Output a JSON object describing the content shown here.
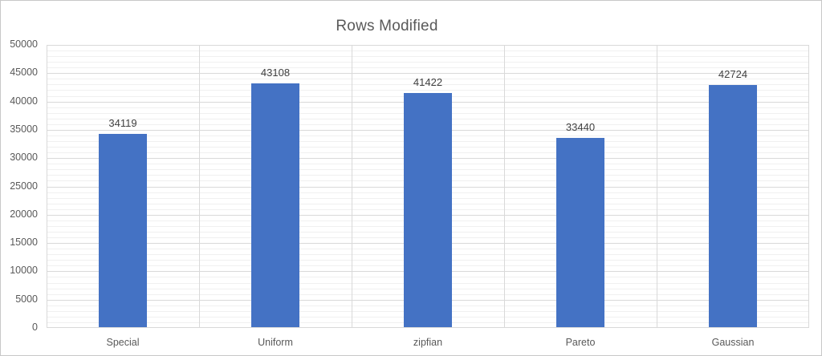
{
  "chart_data": {
    "type": "bar",
    "title": "Rows Modified",
    "categories": [
      "Special",
      "Uniform",
      "zipfian",
      "Pareto",
      "Gaussian"
    ],
    "values": [
      34119,
      43108,
      41422,
      33440,
      42724
    ],
    "xlabel": "",
    "ylabel": "",
    "ylim": [
      0,
      50000
    ],
    "y_major_step": 5000,
    "y_minor_step": 1000,
    "y_tick_labels": [
      "0",
      "5000",
      "10000",
      "15000",
      "20000",
      "25000",
      "30000",
      "35000",
      "40000",
      "45000",
      "50000"
    ],
    "data_labels_shown": true,
    "legend_position": "none",
    "grid": "horizontal major+minor, vertical at category boundaries",
    "bar_color": "#4472C4",
    "colors": {
      "bar": "#4472C4",
      "major_grid": "#d9d9d9",
      "minor_grid": "#f0f0f0",
      "axis_text": "#595959",
      "title_text": "#595959",
      "data_label_text": "#404040",
      "frame_border": "#c8c8c8",
      "background": "#ffffff"
    }
  }
}
